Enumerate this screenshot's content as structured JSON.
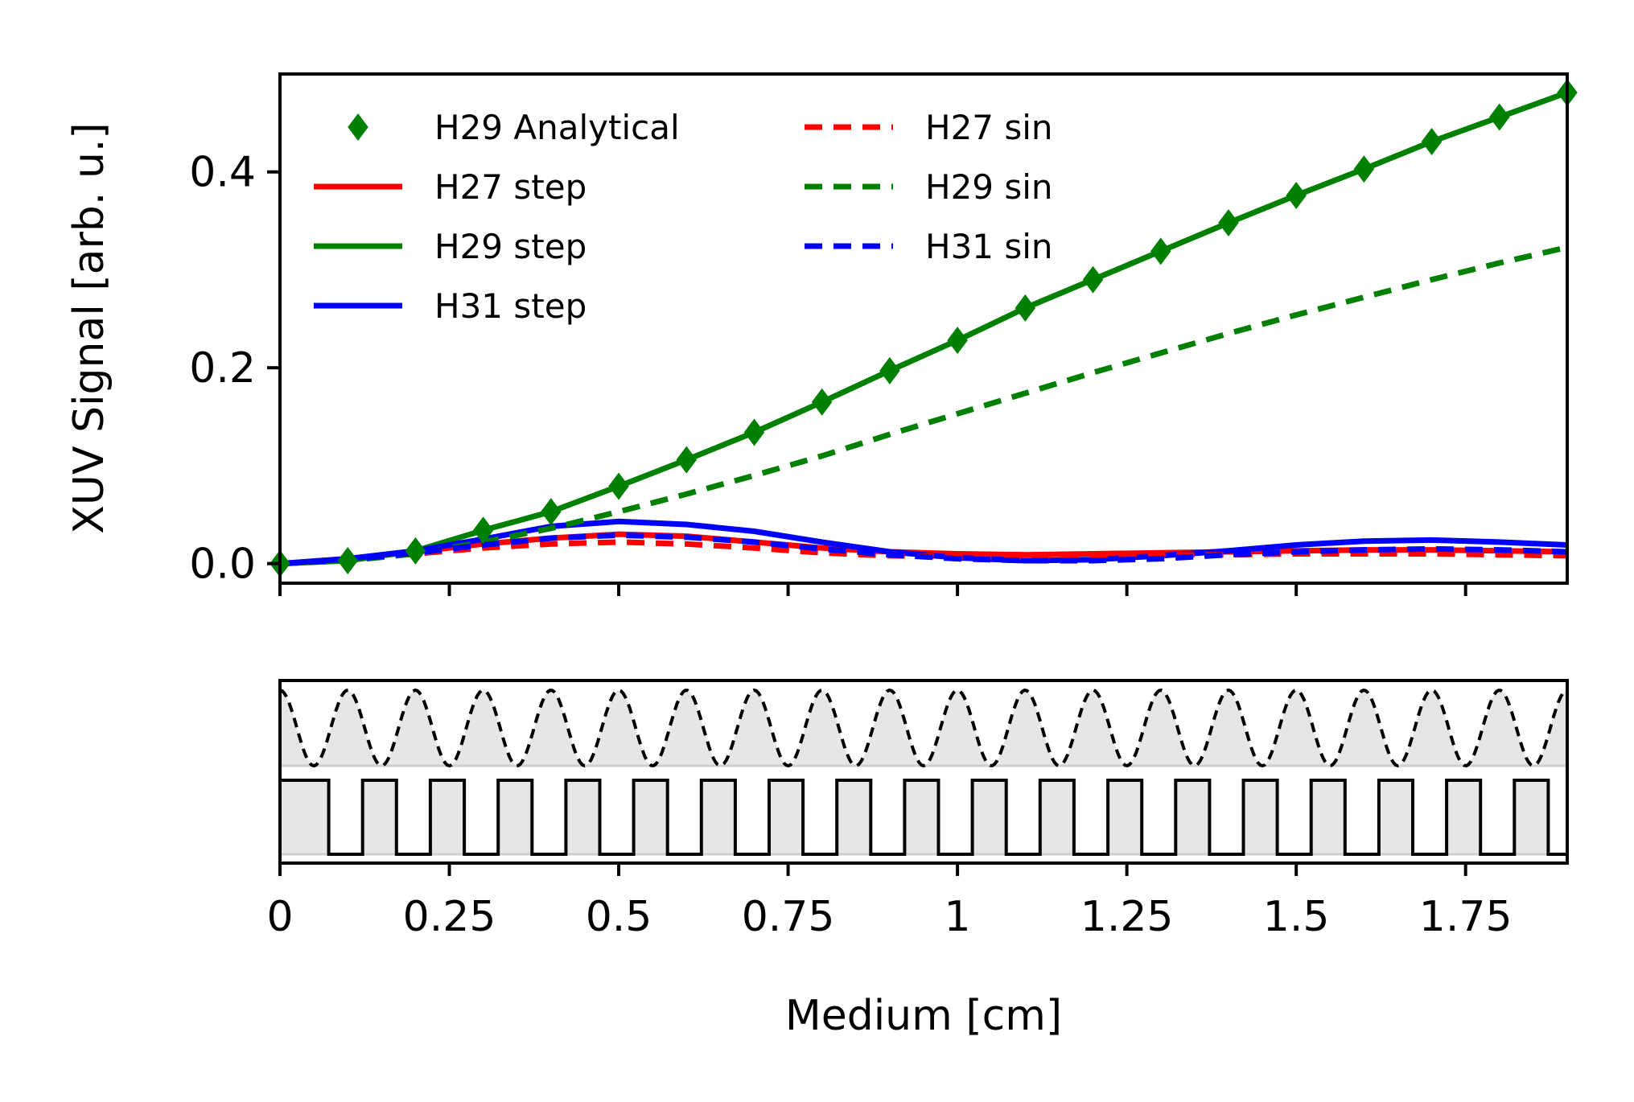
{
  "chart_data": [
    {
      "type": "line",
      "ylabel": "XUV Signal [arb. u.]",
      "xlabel": "",
      "xlim": [
        0,
        1.9
      ],
      "ylim": [
        -0.02,
        0.5
      ],
      "yticks": [
        0.0,
        0.2,
        0.4
      ],
      "ytick_labels": [
        "0.0",
        "0.2",
        "0.4"
      ],
      "xticks": [
        0,
        0.25,
        0.5,
        0.75,
        1,
        1.25,
        1.5,
        1.75
      ],
      "legend_position": "upper-left",
      "legend_columns": 2,
      "colors": {
        "H27": "#ff0000",
        "H29": "#008000",
        "H31": "#0000ff"
      },
      "series": [
        {
          "name": "H29 Analytical",
          "style": "markers",
          "marker": "diamond",
          "color": "#008000",
          "x": [
            0,
            0.1,
            0.2,
            0.3,
            0.4,
            0.5,
            0.6,
            0.7,
            0.8,
            0.9,
            1.0,
            1.1,
            1.2,
            1.3,
            1.4,
            1.5,
            1.6,
            1.7,
            1.8,
            1.9
          ],
          "y": [
            0.0,
            0.003,
            0.013,
            0.034,
            0.053,
            0.079,
            0.106,
            0.134,
            0.165,
            0.197,
            0.228,
            0.261,
            0.29,
            0.319,
            0.348,
            0.376,
            0.403,
            0.431,
            0.456,
            0.481
          ]
        },
        {
          "name": "H27 step",
          "style": "solid",
          "color": "#ff0000",
          "x": [
            0,
            0.1,
            0.2,
            0.3,
            0.4,
            0.5,
            0.6,
            0.7,
            0.8,
            0.9,
            1.0,
            1.1,
            1.2,
            1.3,
            1.4,
            1.5,
            1.6,
            1.7,
            1.8,
            1.9
          ],
          "y": [
            0.0,
            0.005,
            0.012,
            0.02,
            0.026,
            0.03,
            0.028,
            0.022,
            0.016,
            0.012,
            0.01,
            0.009,
            0.01,
            0.011,
            0.012,
            0.013,
            0.014,
            0.014,
            0.013,
            0.012
          ]
        },
        {
          "name": "H29 step",
          "style": "solid",
          "color": "#008000",
          "x": [
            0,
            0.1,
            0.2,
            0.3,
            0.4,
            0.5,
            0.6,
            0.7,
            0.8,
            0.9,
            1.0,
            1.1,
            1.2,
            1.3,
            1.4,
            1.5,
            1.6,
            1.7,
            1.8,
            1.9
          ],
          "y": [
            0.0,
            0.003,
            0.013,
            0.034,
            0.053,
            0.079,
            0.106,
            0.134,
            0.165,
            0.197,
            0.228,
            0.261,
            0.29,
            0.319,
            0.348,
            0.376,
            0.403,
            0.431,
            0.456,
            0.481
          ]
        },
        {
          "name": "H31 step",
          "style": "solid",
          "color": "#0000ff",
          "x": [
            0,
            0.1,
            0.2,
            0.3,
            0.4,
            0.5,
            0.6,
            0.7,
            0.8,
            0.9,
            1.0,
            1.1,
            1.2,
            1.3,
            1.4,
            1.5,
            1.6,
            1.7,
            1.8,
            1.9
          ],
          "y": [
            0.0,
            0.005,
            0.013,
            0.025,
            0.038,
            0.043,
            0.04,
            0.033,
            0.022,
            0.012,
            0.006,
            0.003,
            0.004,
            0.008,
            0.013,
            0.019,
            0.023,
            0.024,
            0.022,
            0.019
          ]
        },
        {
          "name": "H27 sin",
          "style": "dashed",
          "color": "#ff0000",
          "x": [
            0,
            0.1,
            0.2,
            0.3,
            0.4,
            0.5,
            0.6,
            0.7,
            0.8,
            0.9,
            1.0,
            1.1,
            1.2,
            1.3,
            1.4,
            1.5,
            1.6,
            1.7,
            1.8,
            1.9
          ],
          "y": [
            0.0,
            0.004,
            0.01,
            0.016,
            0.02,
            0.022,
            0.02,
            0.016,
            0.011,
            0.008,
            0.007,
            0.007,
            0.008,
            0.009,
            0.009,
            0.01,
            0.01,
            0.01,
            0.009,
            0.008
          ]
        },
        {
          "name": "H29 sin",
          "style": "dashed",
          "color": "#008000",
          "x": [
            0,
            0.1,
            0.2,
            0.3,
            0.4,
            0.5,
            0.6,
            0.7,
            0.8,
            0.9,
            1.0,
            1.1,
            1.2,
            1.3,
            1.4,
            1.5,
            1.6,
            1.7,
            1.8,
            1.9
          ],
          "y": [
            0.0,
            0.003,
            0.01,
            0.022,
            0.036,
            0.053,
            0.071,
            0.09,
            0.11,
            0.132,
            0.153,
            0.174,
            0.195,
            0.215,
            0.235,
            0.254,
            0.272,
            0.29,
            0.307,
            0.323
          ]
        },
        {
          "name": "H31 sin",
          "style": "dashed",
          "color": "#0000ff",
          "x": [
            0,
            0.1,
            0.2,
            0.3,
            0.4,
            0.5,
            0.6,
            0.7,
            0.8,
            0.9,
            1.0,
            1.1,
            1.2,
            1.3,
            1.4,
            1.5,
            1.6,
            1.7,
            1.8,
            1.9
          ],
          "y": [
            0.0,
            0.004,
            0.011,
            0.019,
            0.026,
            0.029,
            0.027,
            0.022,
            0.015,
            0.009,
            0.005,
            0.003,
            0.003,
            0.005,
            0.009,
            0.012,
            0.014,
            0.015,
            0.014,
            0.012
          ]
        }
      ]
    },
    {
      "type": "line",
      "xlabel": "Medium [cm]",
      "xlim": [
        0,
        1.9
      ],
      "xticks": [
        0,
        0.25,
        0.5,
        0.75,
        1,
        1.25,
        1.5,
        1.75
      ],
      "xtick_labels": [
        "0",
        "0.25",
        "0.5",
        "0.75",
        "1",
        "1.25",
        "1.5",
        "1.75"
      ],
      "yticks_visible": false,
      "profiles": [
        {
          "shape": "sinusoid",
          "style": "dashed",
          "color": "#000000",
          "period": 0.1,
          "fill": "#e6e6e6"
        },
        {
          "shape": "square-wave",
          "style": "solid",
          "color": "#000000",
          "period": 0.1,
          "duty": 0.5,
          "fill": "#e6e6e6"
        }
      ]
    }
  ]
}
